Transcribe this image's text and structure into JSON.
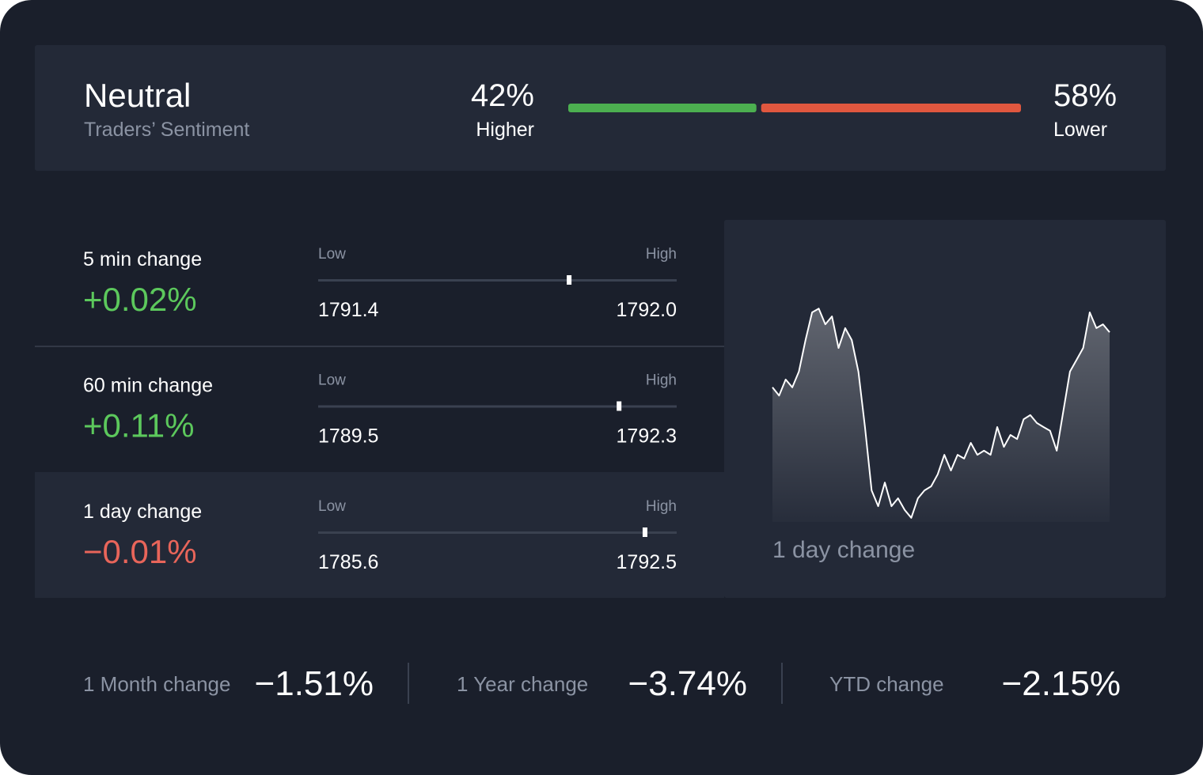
{
  "sentiment": {
    "label": "Neutral",
    "caption": "Traders’ Sentiment",
    "higher": {
      "percent": {
        "value": 42,
        "label": "42%"
      },
      "label": "Higher",
      "color": "#4caf50"
    },
    "lower": {
      "percent": {
        "value": 58,
        "label": "58%"
      },
      "label": "Lower",
      "color": "#e0573f"
    }
  },
  "changes": [
    {
      "label": "5 min change",
      "value": "+0.02%",
      "color": "#5cc85c",
      "low_label": "Low",
      "high_label": "High",
      "low": {
        "value": 1791.4,
        "label": "1791.4"
      },
      "high": {
        "value": 1792.0,
        "label": "1792.0"
      },
      "position": 1791.82
    },
    {
      "label": "60 min change",
      "value": "+0.11%",
      "color": "#5cc85c",
      "low_label": "Low",
      "high_label": "High",
      "low": {
        "value": 1789.5,
        "label": "1789.5"
      },
      "high": {
        "value": 1792.3,
        "label": "1792.3"
      },
      "position": 1791.85
    },
    {
      "label": "1 day change",
      "value": "−0.01%",
      "color": "#e8655a",
      "low_label": "Low",
      "high_label": "High",
      "low": {
        "value": 1785.6,
        "label": "1785.6"
      },
      "high": {
        "value": 1792.5,
        "label": "1792.5"
      },
      "position": 1791.89
    }
  ],
  "chart": {
    "label": "1 day change",
    "color": "#ffffff",
    "values": [
      1789.87,
      1789.61,
      1790.12,
      1789.87,
      1790.37,
      1791.37,
      1792.25,
      1792.37,
      1791.87,
      1792.12,
      1791.12,
      1791.75,
      1791.37,
      1790.37,
      1788.61,
      1786.6,
      1786.1,
      1786.85,
      1786.1,
      1786.35,
      1785.98,
      1785.73,
      1786.35,
      1786.6,
      1786.73,
      1787.11,
      1787.73,
      1787.23,
      1787.73,
      1787.61,
      1788.11,
      1787.73,
      1787.86,
      1787.73,
      1788.61,
      1787.98,
      1788.36,
      1788.23,
      1788.86,
      1788.99,
      1788.74,
      1788.61,
      1788.49,
      1787.86,
      1789.11,
      1790.37,
      1790.74,
      1791.12,
      1792.25,
      1791.75,
      1791.87,
      1791.62
    ]
  },
  "summary": [
    {
      "label": "1 Month change",
      "value": "−1.51%"
    },
    {
      "label": "1 Year change",
      "value": "−3.74%"
    },
    {
      "label": "YTD change",
      "value": "−2.15%"
    }
  ]
}
